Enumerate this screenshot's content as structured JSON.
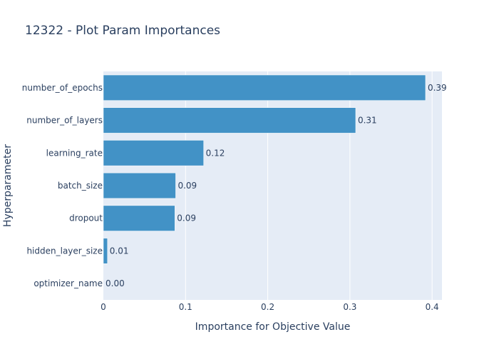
{
  "chart_data": {
    "type": "bar",
    "orientation": "horizontal",
    "title": "12322 - Plot Param Importances",
    "xlabel": "Importance for Objective Value",
    "ylabel": "Hyperparameter",
    "categories": [
      "number_of_epochs",
      "number_of_layers",
      "learning_rate",
      "batch_size",
      "dropout",
      "hidden_layer_size",
      "optimizer_name"
    ],
    "values": [
      0.392,
      0.307,
      0.122,
      0.088,
      0.087,
      0.005,
      0.0
    ],
    "value_labels": [
      "0.39",
      "0.31",
      "0.12",
      "0.09",
      "0.09",
      "0.01",
      "0.00"
    ],
    "xlim": [
      0,
      0.412
    ],
    "xticks": [
      0,
      0.1,
      0.2,
      0.3,
      0.4
    ],
    "xtick_labels": [
      "0",
      "0.1",
      "0.2",
      "0.3",
      "0.4"
    ],
    "grid": true,
    "colors": {
      "bar": "#4292c6",
      "plot_background": "#e5ecf6",
      "grid": "#ffffff",
      "text": "#2a3f5f"
    }
  }
}
